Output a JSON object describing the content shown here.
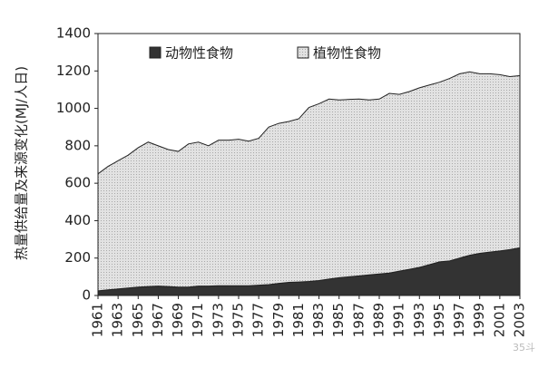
{
  "chart_data": {
    "type": "stacked_area",
    "ylabel": "热量供给量及来源变化(MJ/人日)",
    "x": [
      1961,
      1962,
      1963,
      1964,
      1965,
      1966,
      1967,
      1968,
      1969,
      1970,
      1971,
      1972,
      1973,
      1974,
      1975,
      1976,
      1977,
      1978,
      1979,
      1980,
      1981,
      1982,
      1983,
      1984,
      1985,
      1986,
      1987,
      1988,
      1989,
      1990,
      1991,
      1992,
      1993,
      1994,
      1995,
      1996,
      1997,
      1998,
      1999,
      2000,
      2001,
      2002,
      2003
    ],
    "series": [
      {
        "name": "动物性食物",
        "color": "#333333",
        "values": [
          25,
          30,
          35,
          40,
          45,
          48,
          50,
          48,
          45,
          45,
          50,
          50,
          52,
          52,
          52,
          52,
          55,
          58,
          65,
          70,
          72,
          75,
          80,
          88,
          95,
          100,
          105,
          110,
          115,
          120,
          130,
          140,
          150,
          165,
          180,
          185,
          200,
          215,
          225,
          232,
          238,
          245,
          255
        ]
      },
      {
        "name": "植物性食物",
        "color": "#d9d9d9",
        "values": [
          625,
          660,
          685,
          710,
          745,
          772,
          750,
          732,
          725,
          765,
          770,
          750,
          778,
          778,
          783,
          773,
          785,
          842,
          855,
          860,
          873,
          930,
          945,
          962,
          950,
          948,
          945,
          935,
          935,
          960,
          945,
          950,
          960,
          960,
          960,
          975,
          985,
          980,
          960,
          953,
          942,
          925,
          920
        ]
      }
    ],
    "xlim": [
      1961,
      2003
    ],
    "xticks": [
      1961,
      1963,
      1965,
      1967,
      1969,
      1971,
      1973,
      1975,
      1977,
      1979,
      1981,
      1983,
      1985,
      1987,
      1989,
      1991,
      1993,
      1995,
      1997,
      1999,
      2001,
      2003
    ],
    "ylim": [
      0,
      1400
    ],
    "yticks": [
      0,
      200,
      400,
      600,
      800,
      1000,
      1200,
      1400
    ],
    "grid": false,
    "legend": "top",
    "watermark": "35斗"
  }
}
